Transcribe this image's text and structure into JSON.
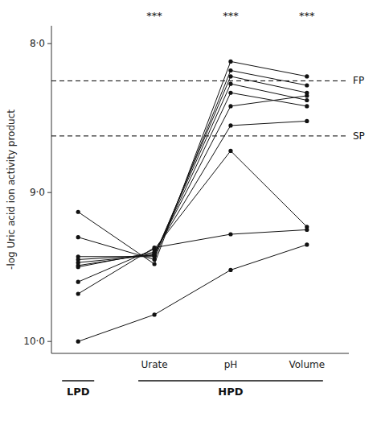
{
  "chart_data": {
    "type": "line",
    "y_label": "-log Uric acid ion activity product",
    "categories": [
      null,
      "Urate",
      "pH",
      "Volume"
    ],
    "category_groups": [
      "LPD",
      "HPD",
      "HPD",
      "HPD"
    ],
    "ylim": [
      10.08,
      7.88
    ],
    "yticks": [
      {
        "value": 10.0,
        "label": "10·0"
      },
      {
        "value": 9.0,
        "label": "9·0"
      },
      {
        "value": 8.0,
        "label": "8·0"
      }
    ],
    "grid": false,
    "color": "#111111",
    "marker": "circle",
    "reference_lines": [
      {
        "value": 8.25,
        "label": "FP",
        "line_style": "dashed"
      },
      {
        "value": 8.62,
        "label": "SP",
        "line_style": "dashed"
      }
    ],
    "annotations": [
      {
        "text": "***",
        "x": "Urate"
      },
      {
        "text": "***",
        "x": "pH"
      },
      {
        "text": "***",
        "x": "Volume"
      }
    ],
    "series": [
      {
        "values": [
          9.13,
          9.48,
          8.12,
          8.22
        ]
      },
      {
        "values": [
          9.3,
          9.45,
          8.18,
          8.28
        ]
      },
      {
        "values": [
          9.43,
          9.43,
          8.22,
          8.33
        ]
      },
      {
        "values": [
          9.45,
          9.42,
          8.27,
          8.38
        ]
      },
      {
        "values": [
          9.47,
          9.42,
          8.33,
          8.42
        ]
      },
      {
        "values": [
          9.49,
          9.41,
          8.42,
          8.35
        ]
      },
      {
        "values": [
          9.5,
          9.4,
          8.55,
          8.52
        ]
      },
      {
        "values": [
          9.6,
          9.38,
          8.72,
          9.23
        ]
      },
      {
        "values": [
          9.68,
          9.37,
          9.28,
          9.25
        ]
      },
      {
        "values": [
          10.0,
          9.82,
          9.52,
          9.35
        ]
      }
    ]
  }
}
